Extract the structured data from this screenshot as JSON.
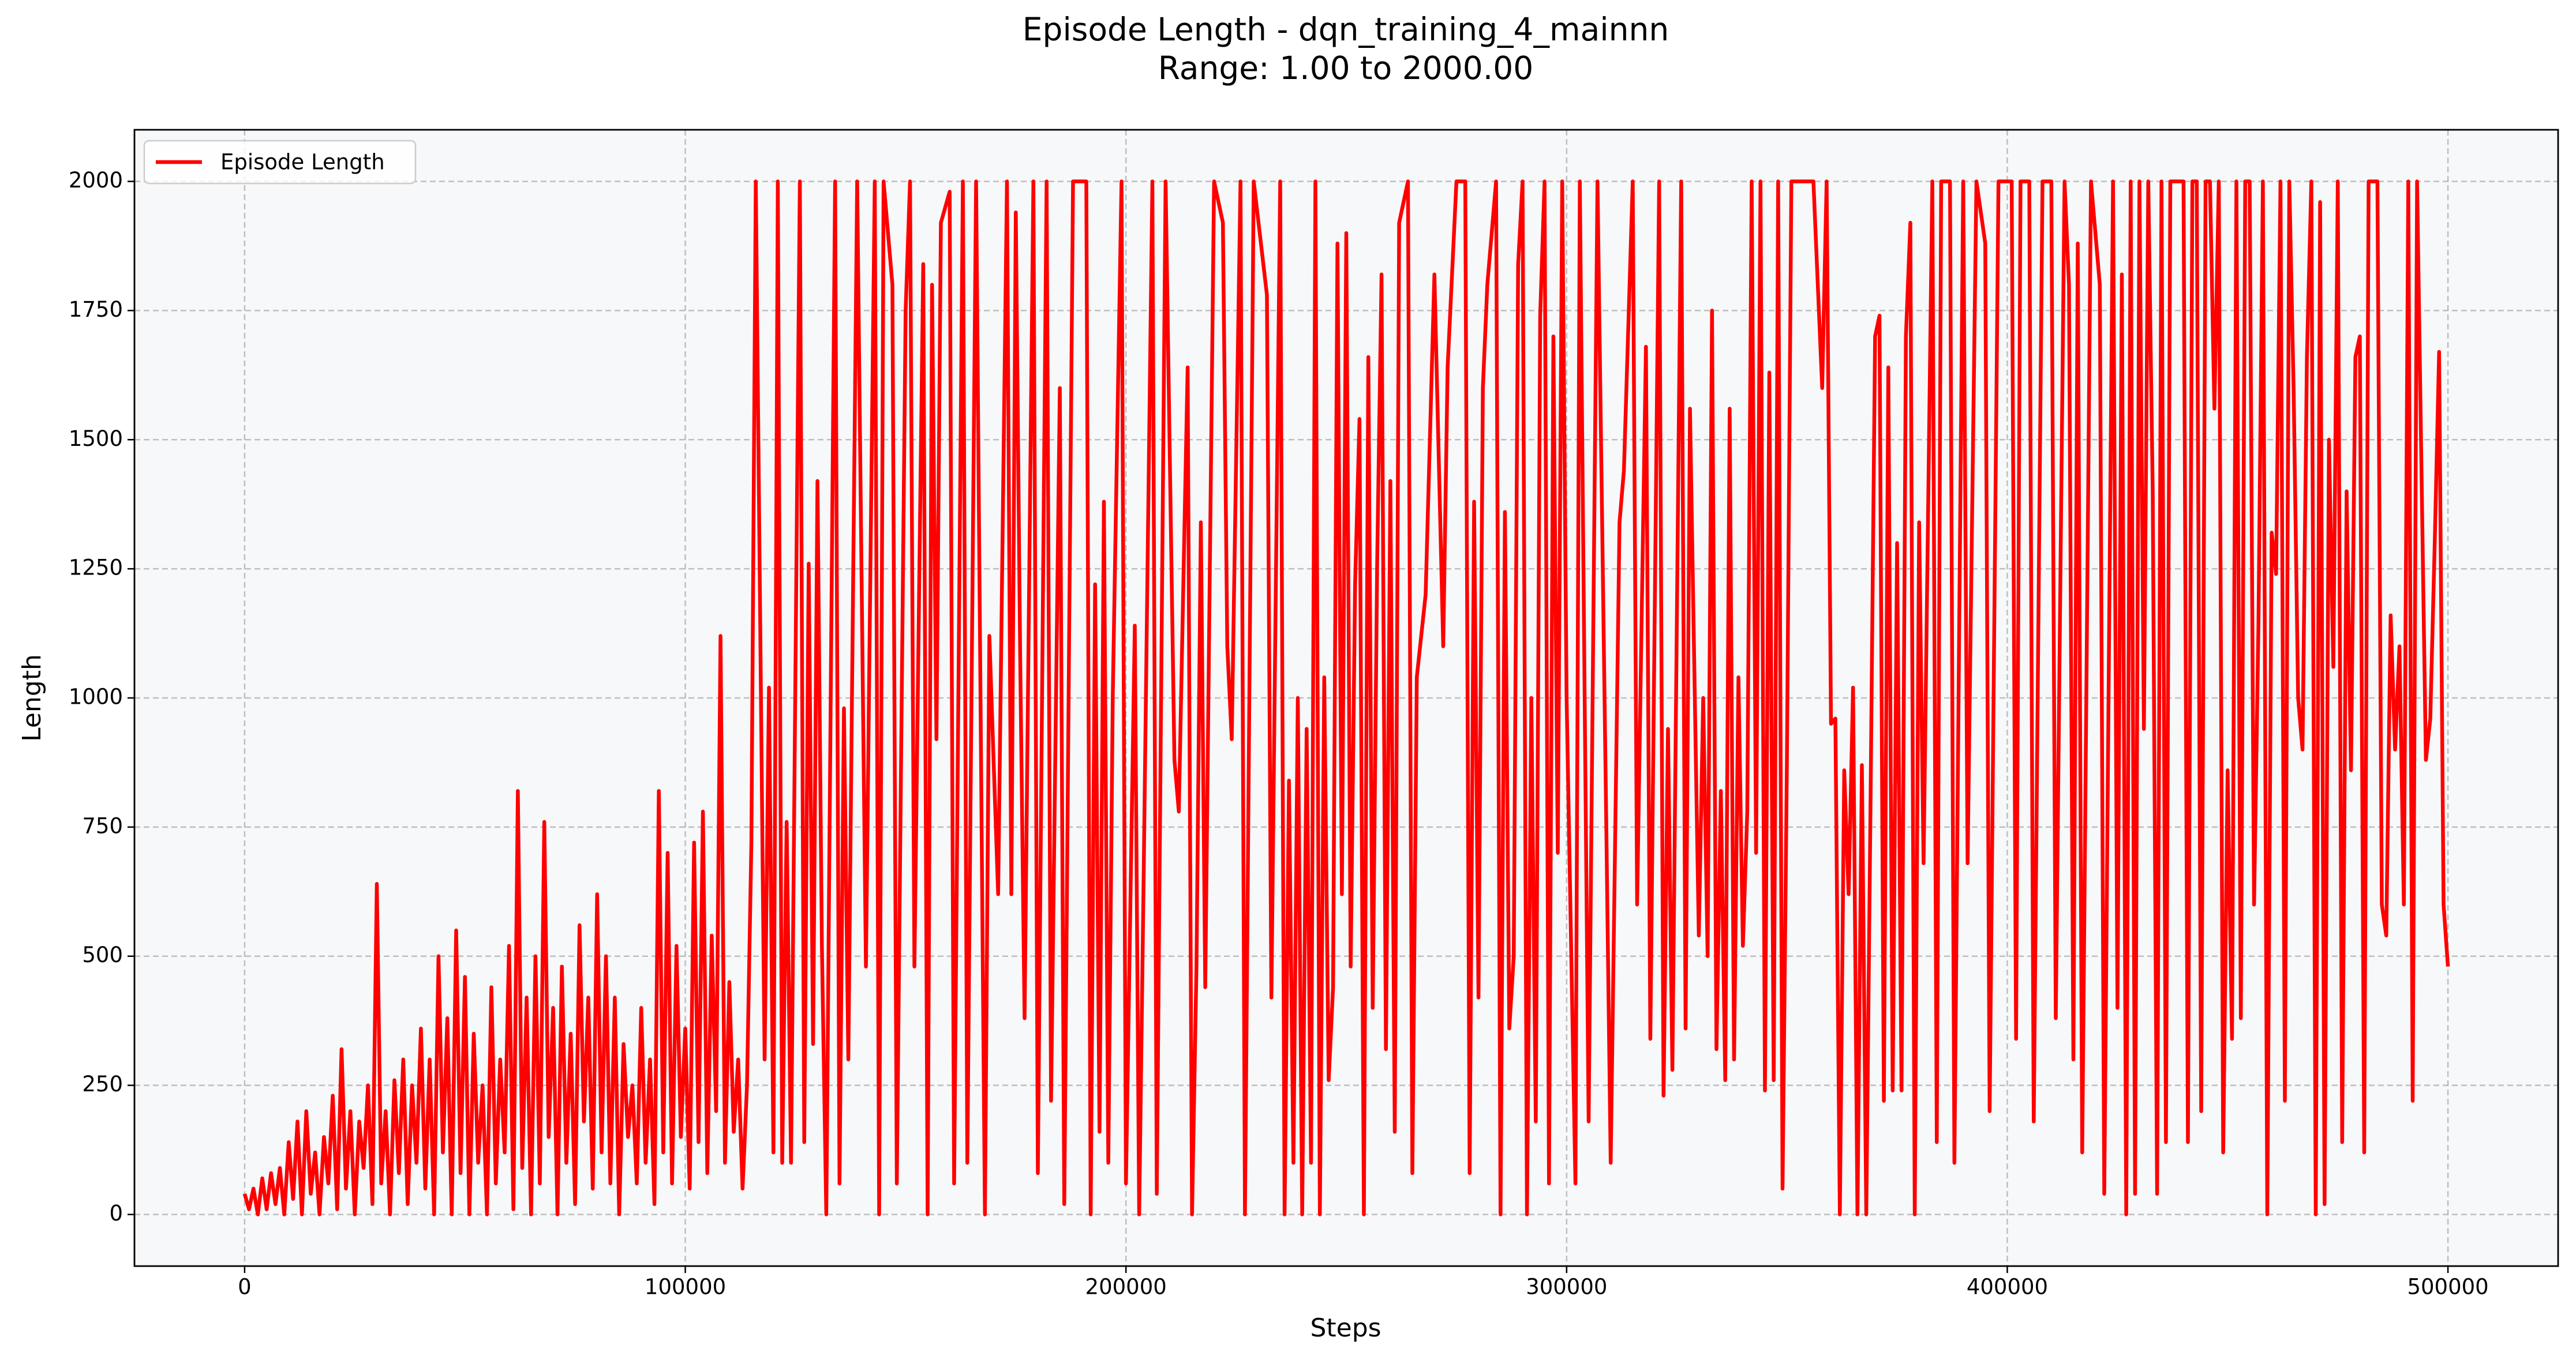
{
  "chart_data": {
    "type": "line",
    "title": "Episode Length - dqn_training_4_mainnn",
    "subtitle": "Range: 1.00 to 2000.00",
    "xlabel": "Steps",
    "ylabel": "Length",
    "xlim": [
      -25000,
      525000
    ],
    "ylim": [
      -99.95,
      2099.95
    ],
    "xticks": [
      0,
      100000,
      200000,
      300000,
      400000,
      500000
    ],
    "yticks": [
      0,
      250,
      500,
      750,
      1000,
      1250,
      1500,
      1750,
      2000
    ],
    "grid": true,
    "legend": "upper left",
    "x": [
      0,
      1000,
      2000,
      3000,
      4000,
      5000,
      6000,
      7000,
      8000,
      9000,
      10000,
      11000,
      12000,
      13000,
      14000,
      15000,
      16000,
      17000,
      18000,
      19000,
      20000,
      21000,
      22000,
      23000,
      24000,
      25000,
      26000,
      27000,
      28000,
      29000,
      30000,
      31000,
      32000,
      33000,
      34000,
      35000,
      36000,
      37000,
      38000,
      39000,
      40000,
      41000,
      42000,
      43000,
      44000,
      45000,
      46000,
      47000,
      48000,
      49000,
      50000,
      51000,
      52000,
      53000,
      54000,
      55000,
      56000,
      57000,
      58000,
      59000,
      60000,
      61000,
      62000,
      63000,
      64000,
      65000,
      66000,
      67000,
      68000,
      69000,
      70000,
      71000,
      72000,
      73000,
      74000,
      75000,
      76000,
      77000,
      78000,
      79000,
      80000,
      81000,
      82000,
      83000,
      84000,
      85000,
      86000,
      87000,
      88000,
      89000,
      90000,
      91000,
      92000,
      93000,
      94000,
      95000,
      96000,
      97000,
      98000,
      99000,
      100000,
      101000,
      102000,
      103000,
      104000,
      105000,
      106000,
      107000,
      108000,
      109000,
      110000,
      111000,
      112000,
      113000,
      114000,
      115000,
      116000,
      118000,
      119000,
      120000,
      121000,
      122000,
      123000,
      124000,
      126000,
      127000,
      128000,
      129000,
      130000,
      131000,
      132000,
      134000,
      135000,
      136000,
      137000,
      139000,
      141000,
      143000,
      144000,
      145000,
      147000,
      148000,
      150000,
      151000,
      152000,
      154000,
      155000,
      156000,
      157000,
      158000,
      160000,
      161000,
      163000,
      164000,
      166000,
      168000,
      169000,
      171000,
      173000,
      174000,
      175000,
      176000,
      177000,
      179000,
      180000,
      182000,
      183000,
      185000,
      186000,
      188000,
      191000,
      192000,
      193000,
      194000,
      195000,
      196000,
      197000,
      199000,
      200000,
      202000,
      203000,
      204000,
      206000,
      207000,
      209000,
      211000,
      212000,
      214000,
      215000,
      216000,
      217000,
      218000,
      220000,
      222000,
      223000,
      224000,
      226000,
      227000,
      229000,
      232000,
      233000,
      235000,
      236000,
      237000,
      238000,
      239000,
      240000,
      241000,
      242000,
      243000,
      244000,
      245000,
      246000,
      247000,
      248000,
      249000,
      250000,
      251000,
      252000,
      253000,
      254000,
      255000,
      256000,
      257000,
      258000,
      259000,
      260000,
      261000,
      262000,
      264000,
      265000,
      266000,
      268000,
      270000,
      272000,
      273000,
      275000,
      277000,
      278000,
      279000,
      280000,
      281000,
      282000,
      284000,
      285000,
      286000,
      287000,
      288000,
      289000,
      290000,
      291000,
      292000,
      293000,
      294000,
      295000,
      296000,
      297000,
      298000,
      299000,
      300000,
      302000,
      303000,
      305000,
      307000,
      309000,
      310000,
      312000,
      313000,
      315000,
      316000,
      318000,
      319000,
      321000,
      322000,
      323000,
      324000,
      326000,
      327000,
      328000,
      330000,
      331000,
      332000,
      333000,
      334000,
      335000,
      336000,
      337000,
      338000,
      339000,
      340000,
      341000,
      342000,
      343000,
      344000,
      345000,
      346000,
      347000,
      348000,
      349000,
      350000,
      351000,
      356000,
      358000,
      359000,
      360000,
      361000,
      362000,
      363000,
      364000,
      365000,
      366000,
      367000,
      368000,
      369000,
      370000,
      371000,
      372000,
      373000,
      374000,
      375000,
      376000,
      377000,
      378000,
      379000,
      380000,
      381000,
      383000,
      384000,
      385000,
      387000,
      388000,
      390000,
      391000,
      393000,
      395000,
      396000,
      398000,
      401000,
      402000,
      403000,
      405000,
      406000,
      408000,
      410000,
      411000,
      413000,
      414000,
      415000,
      416000,
      417000,
      419000,
      421000,
      422000,
      424000,
      425000,
      426000,
      427000,
      428000,
      429000,
      430000,
      431000,
      432000,
      433000,
      434000,
      435000,
      436000,
      437000,
      440000,
      441000,
      442000,
      443000,
      444000,
      445000,
      446000,
      447000,
      448000,
      449000,
      450000,
      451000,
      452000,
      453000,
      454000,
      455000,
      456000,
      457000,
      458000,
      459000,
      460000,
      461000,
      462000,
      463000,
      464000,
      465000,
      466000,
      467000,
      468000,
      469000,
      470000,
      471000,
      472000,
      473000,
      474000,
      475000,
      476000,
      477000,
      478000,
      479000,
      480000,
      481000,
      482000,
      484000,
      485000,
      486000,
      487000,
      488000,
      489000,
      490000,
      491000,
      492000,
      493000,
      495000,
      496000,
      497000,
      498000,
      499000,
      500000
    ],
    "series": [
      {
        "name": "Episode Length",
        "color": "#ff0000",
        "values": [
          40,
          10,
          50,
          0,
          70,
          10,
          80,
          20,
          90,
          0,
          140,
          30,
          180,
          0,
          200,
          40,
          120,
          0,
          150,
          60,
          230,
          10,
          320,
          50,
          200,
          0,
          180,
          90,
          250,
          20,
          640,
          60,
          200,
          0,
          260,
          80,
          300,
          20,
          250,
          100,
          360,
          50,
          300,
          0,
          500,
          120,
          380,
          0,
          550,
          80,
          460,
          0,
          350,
          100,
          250,
          0,
          440,
          60,
          300,
          120,
          520,
          10,
          820,
          90,
          420,
          0,
          500,
          60,
          760,
          150,
          400,
          0,
          480,
          100,
          350,
          20,
          560,
          180,
          420,
          50,
          620,
          120,
          500,
          60,
          420,
          0,
          330,
          150,
          250,
          60,
          400,
          100,
          300,
          20,
          820,
          120,
          700,
          60,
          520,
          150,
          360,
          50,
          720,
          140,
          780,
          80,
          540,
          200,
          1120,
          100,
          450,
          160,
          300,
          50,
          250,
          720,
          2000,
          300,
          1020,
          120,
          2000,
          100,
          760,
          100,
          2000,
          140,
          1260,
          330,
          1420,
          520,
          0,
          2000,
          60,
          980,
          300,
          2000,
          480,
          2000,
          0,
          2000,
          1800,
          60,
          1750,
          2000,
          480,
          1840,
          0,
          1800,
          920,
          1920,
          1980,
          60,
          2000,
          100,
          2000,
          0,
          1120,
          620,
          2000,
          620,
          1940,
          1080,
          380,
          2000,
          80,
          2000,
          220,
          1600,
          20,
          2000,
          2000,
          0,
          1220,
          160,
          1380,
          100,
          1000,
          2000,
          60,
          1140,
          0,
          640,
          2000,
          40,
          2000,
          880,
          780,
          1640,
          0,
          480,
          1340,
          440,
          2000,
          1920,
          1100,
          920,
          2000,
          0,
          2000,
          1780,
          420,
          2000,
          0,
          840,
          100,
          1000,
          0,
          940,
          100,
          2000,
          0,
          1040,
          260,
          440,
          1880,
          620,
          1900,
          480,
          1220,
          1540,
          0,
          1660,
          400,
          1260,
          1820,
          320,
          1420,
          160,
          1920,
          2000,
          80,
          1040,
          1200,
          1820,
          1100,
          1640,
          2000,
          2000,
          80,
          1380,
          420,
          1600,
          1800,
          2000,
          0,
          1360,
          360,
          500,
          1840,
          2000,
          0,
          1000,
          180,
          1740,
          2000,
          60,
          1700,
          700,
          2000,
          1000,
          60,
          2000,
          180,
          2000,
          760,
          100,
          1340,
          1440,
          2000,
          600,
          1680,
          340,
          2000,
          230,
          940,
          280,
          2000,
          360,
          1560,
          540,
          1000,
          500,
          1750,
          320,
          820,
          260,
          1560,
          300,
          1040,
          520,
          780,
          2000,
          700,
          2000,
          240,
          1630,
          260,
          2000,
          50,
          880,
          2000,
          2000,
          1600,
          2000,
          950,
          960,
          0,
          860,
          620,
          1020,
          0,
          870,
          0,
          820,
          1700,
          1740,
          220,
          1640,
          240,
          1300,
          240,
          1700,
          1920,
          0,
          1340,
          680,
          2000,
          140,
          2000,
          2000,
          100,
          2000,
          680,
          2000,
          1880,
          200,
          2000,
          2000,
          340,
          2000,
          2000,
          180,
          2000,
          2000,
          380,
          2000,
          1800,
          300,
          1880,
          120,
          2000,
          1800,
          40,
          2000,
          400,
          1820,
          0,
          2000,
          40,
          2000,
          940,
          2000,
          1400,
          40,
          2000,
          140,
          2000,
          2000,
          140,
          2000,
          2000,
          200,
          2000,
          2000,
          1560,
          2000,
          120,
          860,
          340,
          2000,
          380,
          2000,
          2000,
          600,
          1140,
          2000,
          0,
          1320,
          1240,
          2000,
          220,
          2000,
          1590,
          1000,
          900,
          1660,
          2000,
          0,
          1960,
          20,
          1500,
          1060,
          2000,
          140,
          1400,
          860,
          1660,
          1700,
          120,
          2000,
          2000,
          600,
          540,
          1160,
          900,
          1100,
          600,
          2000,
          220,
          2000,
          880,
          960,
          1300,
          1670,
          600,
          480
        ]
      }
    ]
  }
}
